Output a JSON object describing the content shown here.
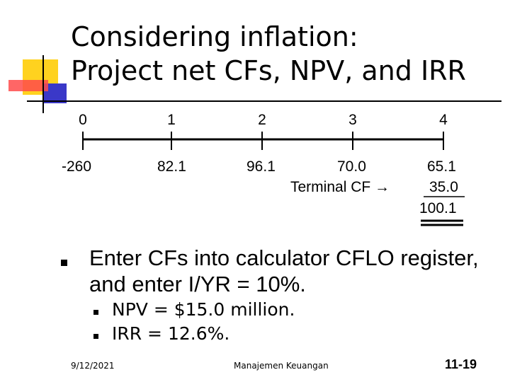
{
  "title": {
    "line1": "Considering inflation:",
    "line2": "Project net CFs, NPV, and IRR"
  },
  "timeline": {
    "periods": [
      "0",
      "1",
      "2",
      "3",
      "4"
    ],
    "cash_flows": [
      "-260",
      "82.1",
      "96.1",
      "70.0",
      "65.1"
    ],
    "terminal_label": "Terminal CF →",
    "terminal_value": "35.0",
    "total_value": "100.1"
  },
  "bullets": {
    "main_line1": "Enter CFs into calculator CFLO register,",
    "main_line2": "and enter I/YR = 10%.",
    "sub": [
      "NPV = $15.0 million.",
      "IRR = 12.6%."
    ]
  },
  "footer": {
    "date": "9/12/2021",
    "course": "Manajemen Keuangan",
    "slide_number": "11-19"
  },
  "colors": {
    "deco_yellow": "#ffd21f",
    "deco_red": "#ff4b4b",
    "deco_blue": "#3a38c8"
  }
}
